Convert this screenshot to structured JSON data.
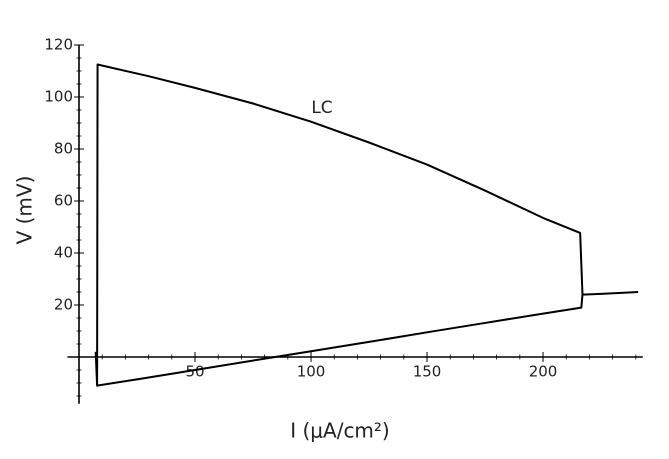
{
  "chart_data": {
    "type": "line",
    "x_label": "I (μA/cm²)",
    "y_label": "V (mV)",
    "annotation": "LC",
    "series": [
      {
        "color": "#000000",
        "x": [
          7.2,
          7.8,
          8,
          30,
          50,
          75,
          100,
          125,
          150,
          175,
          200,
          216,
          217,
          216.5,
          200,
          175,
          150,
          125,
          100,
          84.5,
          50,
          25,
          7.8
        ],
        "values": [
          2,
          -11,
          112.5,
          108,
          103.5,
          97.5,
          90.5,
          82.5,
          74,
          64,
          53.5,
          47.7,
          24,
          19,
          16.7,
          13.1,
          9.5,
          5.8,
          2.2,
          0,
          -5,
          -8.6,
          -11
        ]
      },
      {
        "color": "#000000",
        "x": [
          217,
          225,
          241
        ],
        "values": [
          24,
          24.3,
          25
        ]
      }
    ],
    "xlim": [
      -5,
      243
    ],
    "ylim": [
      -18,
      120
    ],
    "xticks": [
      50,
      100,
      150,
      200
    ],
    "yticks": [
      20,
      40,
      60,
      80,
      100,
      120
    ]
  }
}
